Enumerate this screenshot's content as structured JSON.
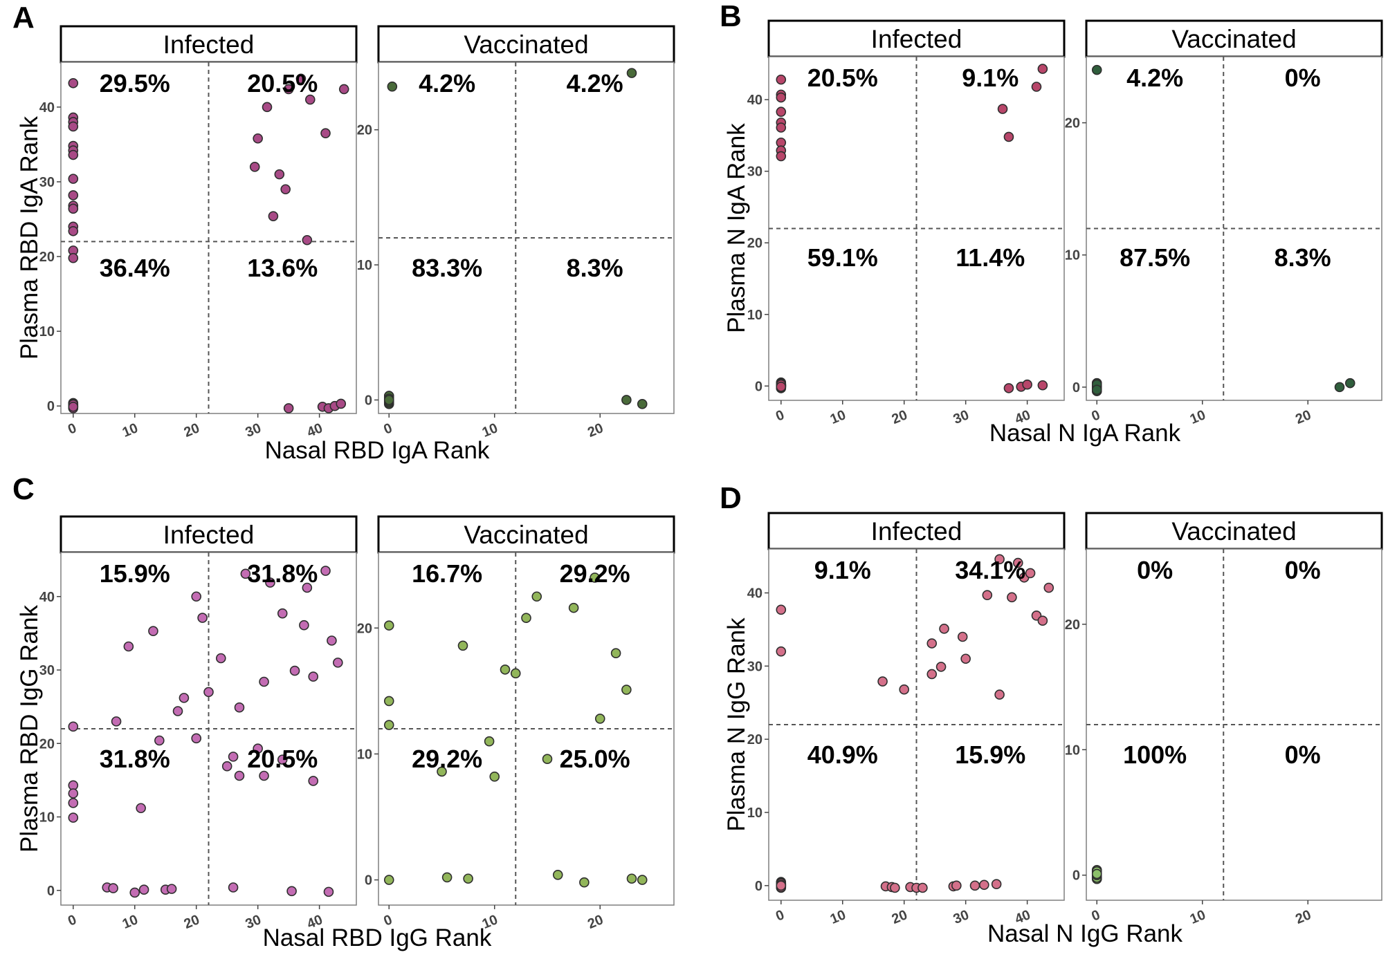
{
  "chart_data": [
    {
      "type": "scatter",
      "panel": "A",
      "xlabel": "Nasal RBD IgA Rank",
      "ylabel": "Plasma RBD IgA Rank",
      "facets": [
        {
          "title": "Infected",
          "color": "#a84a86",
          "xlim": [
            -2,
            46
          ],
          "ylim": [
            -1,
            46
          ],
          "xticks": [
            0,
            10,
            20,
            30,
            40
          ],
          "yticks": [
            0,
            10,
            20,
            30,
            40
          ],
          "xcut": 22,
          "ycut": 22,
          "quadrant_labels": {
            "top_left": "29.5%",
            "top_right": "20.5%",
            "bottom_left": "36.4%",
            "bottom_right": "13.6%"
          },
          "x": [
            0,
            0,
            0,
            0,
            0,
            0,
            0,
            0,
            0,
            0,
            0,
            0,
            0,
            0,
            0,
            0,
            0,
            0,
            0,
            0,
            0,
            0,
            0,
            0,
            0,
            0,
            0,
            0,
            0,
            29.5,
            30,
            31.5,
            32.5,
            33.5,
            34.5,
            35,
            37,
            38,
            38.5,
            41,
            44,
            35,
            40.5,
            41.5,
            42.5,
            43.5
          ],
          "y": [
            43.2,
            38.6,
            38,
            37.4,
            34.8,
            34.2,
            33.6,
            30.4,
            28.2,
            26.8,
            26.4,
            24,
            23.4,
            20.8,
            19.8,
            0.4,
            0.3,
            0.2,
            0.1,
            0.1,
            0,
            0,
            -0.1,
            -0.1,
            -0.2,
            -0.2,
            -0.3,
            0.2,
            -0.1,
            32,
            35.8,
            40,
            25.4,
            31,
            29,
            42.4,
            43.8,
            22.2,
            41,
            36.5,
            42.4,
            -0.3,
            -0.1,
            -0.3,
            0,
            0.3
          ]
        },
        {
          "title": "Vaccinated",
          "color": "#4a6b3a",
          "xlim": [
            -1,
            27
          ],
          "ylim": [
            -1,
            25
          ],
          "xticks": [
            0,
            10,
            20
          ],
          "yticks": [
            0,
            10,
            20
          ],
          "xcut": 12,
          "ycut": 12,
          "quadrant_labels": {
            "top_left": "4.2%",
            "top_right": "4.2%",
            "bottom_left": "83.3%",
            "bottom_right": "8.3%"
          },
          "x": [
            0.3,
            23,
            0,
            0,
            0,
            0,
            0,
            0,
            0,
            0,
            0,
            0,
            0,
            0,
            0,
            0,
            0,
            0,
            0,
            0,
            22.5,
            24
          ],
          "y": [
            23.2,
            24.2,
            0.3,
            0.2,
            0.1,
            0,
            -0.1,
            -0.2,
            0.2,
            0,
            -0.3,
            0.1,
            -0.1,
            0.2,
            0.3,
            0,
            -0.2,
            0.1,
            -0.1,
            0,
            0,
            -0.3
          ]
        }
      ]
    },
    {
      "type": "scatter",
      "panel": "B",
      "xlabel": "Nasal N IgA Rank",
      "ylabel": "Plasma N IgA Rank",
      "facets": [
        {
          "title": "Infected",
          "color": "#b8466a",
          "xlim": [
            -2,
            46
          ],
          "ylim": [
            -2,
            46
          ],
          "xticks": [
            0,
            10,
            20,
            30,
            40
          ],
          "yticks": [
            0,
            10,
            20,
            30,
            40
          ],
          "xcut": 22,
          "ycut": 22,
          "quadrant_labels": {
            "top_left": "20.5%",
            "top_right": "9.1%",
            "bottom_left": "59.1%",
            "bottom_right": "11.4%"
          },
          "x": [
            0,
            0,
            0,
            0,
            0,
            0,
            0,
            0,
            0,
            0,
            0,
            0,
            0,
            0,
            0,
            0,
            0,
            0,
            0,
            0,
            0,
            0,
            0,
            0,
            0,
            0,
            0,
            0,
            0,
            0,
            0,
            0,
            0,
            0,
            0,
            0,
            0,
            36,
            37,
            41.5,
            42.5,
            37,
            39,
            40,
            42.5
          ],
          "y": [
            42.8,
            40.7,
            40.3,
            38.3,
            36.8,
            36.1,
            34,
            32.9,
            32.1,
            0.5,
            0.4,
            0.3,
            0.2,
            0.1,
            0,
            -0.1,
            -0.2,
            -0.3,
            0.3,
            0,
            -0.2,
            0.1,
            0.2,
            0,
            -0.1,
            0.3,
            -0.3,
            0,
            0.1,
            -0.1,
            0.2,
            0,
            -0.2,
            0.1,
            0,
            0.2,
            -0.1,
            38.7,
            34.8,
            41.8,
            44.3,
            -0.3,
            -0.1,
            0.2,
            0.1
          ]
        },
        {
          "title": "Vaccinated",
          "color": "#2f5e3c",
          "xlim": [
            -1,
            27
          ],
          "ylim": [
            -1,
            25
          ],
          "xticks": [
            0,
            10,
            20
          ],
          "yticks": [
            0,
            10,
            20
          ],
          "xcut": 12,
          "ycut": 12,
          "quadrant_labels": {
            "top_left": "4.2%",
            "top_right": "0%",
            "bottom_left": "87.5%",
            "bottom_right": "8.3%"
          },
          "x": [
            0,
            0,
            0,
            0,
            0,
            0,
            0,
            0,
            0,
            0,
            0,
            0,
            0,
            0,
            0,
            0,
            0,
            0,
            0,
            0,
            0,
            0,
            23,
            24
          ],
          "y": [
            24,
            0.3,
            0.2,
            0.1,
            0,
            -0.1,
            -0.2,
            -0.3,
            0.2,
            0,
            -0.1,
            0.3,
            0.1,
            -0.2,
            0,
            0.2,
            -0.3,
            0.1,
            0,
            -0.1,
            0.2,
            -0.2,
            0,
            0.3
          ]
        }
      ]
    },
    {
      "type": "scatter",
      "panel": "C",
      "xlabel": "Nasal RBD IgG Rank",
      "ylabel": "Plasma RBD IgG Rank",
      "facets": [
        {
          "title": "Infected",
          "color": "#c36cb3",
          "xlim": [
            -2,
            46
          ],
          "ylim": [
            -2,
            46
          ],
          "xticks": [
            0,
            10,
            20,
            30,
            40
          ],
          "yticks": [
            0,
            10,
            20,
            30,
            40
          ],
          "xcut": 22,
          "ycut": 22,
          "quadrant_labels": {
            "top_left": "15.9%",
            "top_right": "31.8%",
            "bottom_left": "31.8%",
            "bottom_right": "20.5%"
          },
          "x": [
            0,
            7,
            9,
            13,
            17,
            18,
            20,
            21,
            0,
            0,
            0,
            0,
            11,
            14,
            20,
            5.5,
            6.5,
            10,
            11.5,
            15,
            16,
            22,
            24,
            27,
            28,
            31,
            32,
            34,
            36,
            37.5,
            38,
            39,
            41,
            42,
            43,
            25,
            26,
            27,
            30,
            31,
            34,
            39,
            26,
            35.5,
            41.5
          ],
          "y": [
            22.3,
            23,
            33.2,
            35.3,
            24.4,
            26.2,
            40,
            37.1,
            14.3,
            13.2,
            11.9,
            9.9,
            11.2,
            20.4,
            20.7,
            0.4,
            0.3,
            -0.3,
            0.1,
            0.1,
            0.2,
            27,
            31.6,
            24.9,
            43.1,
            28.4,
            41.9,
            37.7,
            29.9,
            36.1,
            41.2,
            29.1,
            43.5,
            34,
            31,
            16.9,
            18.2,
            15.6,
            19.3,
            15.6,
            17.8,
            14.9,
            0.4,
            -0.1,
            -0.2
          ]
        },
        {
          "title": "Vaccinated",
          "color": "#92b65a",
          "xlim": [
            -1,
            27
          ],
          "ylim": [
            -2,
            26
          ],
          "xticks": [
            0,
            10,
            20
          ],
          "yticks": [
            0,
            10,
            20
          ],
          "xcut": 12,
          "ycut": 12,
          "quadrant_labels": {
            "top_left": "16.7%",
            "top_right": "29.2%",
            "bottom_left": "29.2%",
            "bottom_right": "25.0%"
          },
          "x": [
            0,
            0,
            0,
            7,
            11,
            12,
            13,
            14,
            17.5,
            19.5,
            20,
            21.5,
            22.5,
            5,
            9.5,
            10,
            15,
            0,
            5.5,
            7.5,
            16,
            18.5,
            23,
            24
          ],
          "y": [
            20.2,
            14.2,
            12.3,
            18.6,
            16.7,
            16.4,
            20.8,
            22.5,
            21.6,
            24,
            12.8,
            18,
            15.1,
            8.6,
            11,
            8.2,
            9.6,
            0,
            0.2,
            0.1,
            0.4,
            -0.2,
            0.1,
            0
          ],
          "note": "first three x values are approximately 0"
        }
      ]
    },
    {
      "type": "scatter",
      "panel": "D",
      "xlabel": "Nasal N IgG Rank",
      "ylabel": "Plasma N IgG Rank",
      "facets": [
        {
          "title": "Infected",
          "color": "#d4708a",
          "xlim": [
            -2,
            46
          ],
          "ylim": [
            -2,
            46
          ],
          "xticks": [
            0,
            10,
            20,
            30,
            40
          ],
          "yticks": [
            0,
            10,
            20,
            30,
            40
          ],
          "xcut": 22,
          "ycut": 22,
          "quadrant_labels": {
            "top_left": "9.1%",
            "top_right": "34.1%",
            "bottom_left": "40.9%",
            "bottom_right": "15.9%"
          },
          "x": [
            0,
            0,
            16.5,
            20,
            24.5,
            24.5,
            26,
            26.5,
            29.5,
            30,
            33.5,
            35.5,
            35.5,
            37.5,
            38.5,
            39.5,
            40.5,
            41.5,
            42.5,
            43.5,
            0,
            0,
            0,
            0,
            0,
            0,
            0,
            0,
            0,
            0,
            0,
            0,
            0,
            0,
            0,
            0,
            17,
            18,
            18.5,
            21,
            22,
            23,
            28,
            28.5,
            31.5,
            33,
            35
          ],
          "y": [
            37.7,
            32,
            27.9,
            26.8,
            33.1,
            28.9,
            29.9,
            35.1,
            34,
            31,
            39.7,
            44.6,
            26.1,
            39.4,
            44.1,
            42.1,
            42.7,
            36.9,
            36.2,
            40.7,
            0.5,
            0.4,
            0.3,
            0.2,
            0.1,
            0,
            -0.1,
            -0.2,
            -0.3,
            0.2,
            0,
            -0.1,
            0.3,
            0.1,
            -0.2,
            0,
            -0.1,
            -0.2,
            -0.3,
            -0.2,
            -0.3,
            -0.3,
            -0.1,
            0,
            0,
            0.1,
            0.2
          ]
        },
        {
          "title": "Vaccinated",
          "color": "#8cc06a",
          "xlim": [
            -1,
            27
          ],
          "ylim": [
            -2,
            26
          ],
          "xticks": [
            0,
            10,
            20
          ],
          "yticks": [
            0,
            10,
            20
          ],
          "xcut": 12,
          "ycut": 12,
          "quadrant_labels": {
            "top_left": "0%",
            "top_right": "0%",
            "bottom_left": "100%",
            "bottom_right": "0%"
          },
          "x": [
            0,
            0,
            0,
            0,
            0,
            0,
            0,
            0,
            0,
            0,
            0,
            0,
            0,
            0,
            0,
            0,
            0,
            0,
            0,
            0,
            0,
            0,
            0,
            0
          ],
          "y": [
            0.4,
            0.3,
            0.2,
            0.1,
            0,
            -0.1,
            -0.2,
            -0.3,
            0.3,
            0.1,
            -0.1,
            0.2,
            0,
            -0.2,
            0.4,
            -0.3,
            0.1,
            0,
            0.2,
            -0.1,
            0.3,
            -0.2,
            0,
            0.1
          ]
        }
      ]
    }
  ]
}
